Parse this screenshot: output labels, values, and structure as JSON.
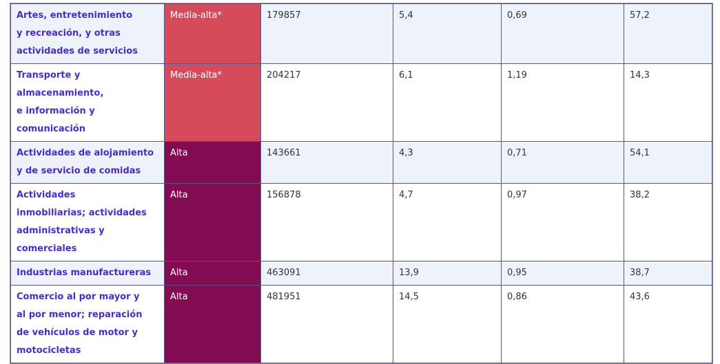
{
  "table": {
    "rows": [
      {
        "sector": [
          "Artes, entretenimiento",
          "y recreación, y otras",
          "actividades de servicios"
        ],
        "level": "Media-alta*",
        "cells": [
          "179857",
          "5,4",
          "0,69",
          "57,2"
        ]
      },
      {
        "sector": [
          "Transporte y",
          "almacenamiento,",
          "e información y",
          "comunicación"
        ],
        "level": "Media-alta*",
        "cells": [
          "204217",
          "6,1",
          "1,19",
          "14,3"
        ]
      },
      {
        "sector": [
          "Actividades de alojamiento",
          "y de servicio de comidas"
        ],
        "level": "Alta",
        "cells": [
          "143661",
          "4,3",
          "0,71",
          "54,1"
        ]
      },
      {
        "sector": [
          "Actividades",
          "inmobiliarias; actividades",
          "administrativas y",
          "comerciales"
        ],
        "level": "Alta",
        "cells": [
          "156878",
          "4,7",
          "0,97",
          "38,2"
        ]
      },
      {
        "sector": [
          "Industrias manufactureras"
        ],
        "level": "Alta",
        "cells": [
          "463091",
          "13,9",
          "0,95",
          "38,7"
        ]
      },
      {
        "sector": [
          "Comercio al por mayor y",
          "al por menor; reparación",
          "de vehículos de motor y",
          "motocicletas"
        ],
        "level": "Alta",
        "cells": [
          "481951",
          "14,5",
          "0,86",
          "43,6"
        ]
      }
    ]
  }
}
